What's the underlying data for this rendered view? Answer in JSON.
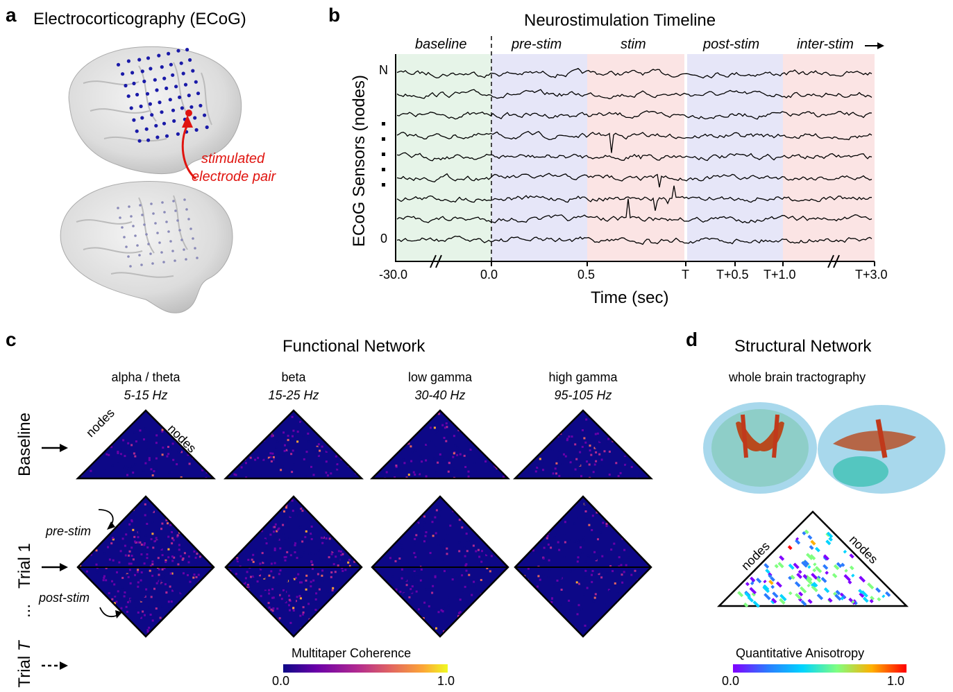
{
  "panel_a": {
    "label": "a",
    "title": "Electrocorticography (ECoG)",
    "annotation_line1": "stimulated",
    "annotation_line2": "electrode pair"
  },
  "panel_b": {
    "label": "b",
    "title": "Neurostimulation Timeline",
    "phases": [
      "baseline",
      "pre-stim",
      "stim",
      "post-stim",
      "inter-stim"
    ],
    "ylabel": "ECoG Sensors (nodes)",
    "y_top": "N",
    "y_bottom": "0",
    "xlabel": "Time (sec)",
    "xticks": [
      "-30.0",
      "0.0",
      "0.5",
      "T",
      "T+0.5",
      "T+1.0",
      "T+3.0"
    ],
    "phase_colors": {
      "baseline": "#e6f4e8",
      "pre-stim": "#e6e6f8",
      "stim": "#fbe4e4",
      "post-stim": "#e6e6f8",
      "inter-stim": "#fbe4e4"
    }
  },
  "panel_c": {
    "label": "c",
    "title": "Functional Network",
    "bands": [
      {
        "name": "alpha / theta",
        "range": "5-15 Hz"
      },
      {
        "name": "beta",
        "range": "15-25 Hz"
      },
      {
        "name": "low gamma",
        "range": "30-40 Hz"
      },
      {
        "name": "high gamma",
        "range": "95-105 Hz"
      }
    ],
    "row_baseline": "Baseline",
    "row_trial1": "Trial 1",
    "row_trialT_prefix": "Trial ",
    "row_trialT_var": "T",
    "ellipsis": "...",
    "axis_nodes": "nodes",
    "pre_stim": "pre-stim",
    "post_stim": "post-stim",
    "colorbar_title": "Multitaper Coherence",
    "colorbar_min": "0.0",
    "colorbar_max": "1.0",
    "colormap": [
      "#0d0887",
      "#6a00a8",
      "#b12a90",
      "#e16462",
      "#fca636",
      "#f0f921"
    ]
  },
  "panel_d": {
    "label": "d",
    "title": "Structural Network",
    "subtitle": "whole brain tractography",
    "axis_nodes": "nodes",
    "colorbar_title": "Quantitative Anisotropy",
    "colorbar_min": "0.0",
    "colorbar_max": "1.0",
    "colormap": [
      "#8000ff",
      "#2b7bff",
      "#00d4ff",
      "#80ff80",
      "#ffb000",
      "#ff0000"
    ]
  }
}
